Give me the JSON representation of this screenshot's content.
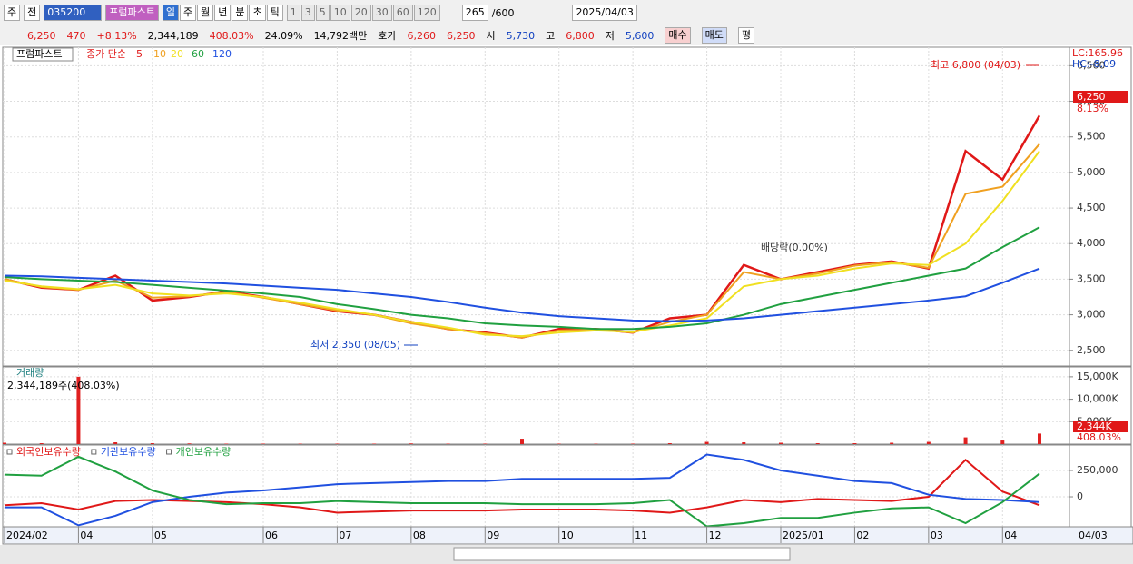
{
  "toolbar": {
    "period_type": "주",
    "scope": "전",
    "code": "035200",
    "name": "프럼파스트",
    "intervals": [
      "일",
      "주",
      "월",
      "년",
      "분",
      "초",
      "틱"
    ],
    "minutes": [
      "1",
      "3",
      "5",
      "10",
      "20",
      "30",
      "60",
      "120"
    ],
    "count": "265",
    "max": "/600",
    "date": "2025/04/03"
  },
  "quote": {
    "price": "6,250",
    "change": "470",
    "rate": "+8.13%",
    "volume": "2,344,189",
    "volume_rate": "408.03%",
    "turnover": "24.09%",
    "amount": "14,792백만",
    "bid_label": "호가",
    "ask": "6,260",
    "bid": "6,250",
    "open_label": "시",
    "open": "5,730",
    "high_label": "고",
    "high": "6,800",
    "low_label": "저",
    "low": "5,600",
    "buy": "매수",
    "sell": "매도",
    "avg": "평"
  },
  "chart_data": [
    {
      "type": "line",
      "name": "프럼파스트",
      "legend_prefix": "종가 단순",
      "series": [
        {
          "name": "5",
          "color": "#e01818",
          "values": [
            3500,
            3380,
            3350,
            3550,
            3200,
            3250,
            3330,
            3250,
            3150,
            3050,
            3000,
            2900,
            2800,
            2750,
            2680,
            2800,
            2800,
            2750,
            2950,
            3000,
            3700,
            3500,
            3600,
            3700,
            3750,
            3650,
            5300,
            4900,
            5800
          ]
        },
        {
          "name": "10",
          "color": "#f0a020",
          "values": [
            3500,
            3390,
            3350,
            3480,
            3240,
            3260,
            3320,
            3240,
            3150,
            3060,
            3000,
            2880,
            2800,
            2740,
            2680,
            2780,
            2790,
            2750,
            2900,
            3000,
            3600,
            3500,
            3580,
            3690,
            3740,
            3660,
            4700,
            4800,
            5400
          ]
        },
        {
          "name": "20",
          "color": "#f0e020",
          "values": [
            3480,
            3400,
            3360,
            3420,
            3300,
            3270,
            3300,
            3250,
            3170,
            3080,
            3000,
            2900,
            2820,
            2720,
            2700,
            2750,
            2780,
            2760,
            2850,
            2950,
            3400,
            3500,
            3550,
            3650,
            3720,
            3700,
            4000,
            4600,
            5300
          ]
        },
        {
          "name": "60",
          "color": "#20a040",
          "values": [
            3530,
            3500,
            3480,
            3460,
            3420,
            3380,
            3340,
            3300,
            3250,
            3150,
            3080,
            3000,
            2950,
            2880,
            2850,
            2830,
            2800,
            2800,
            2830,
            2880,
            3000,
            3150,
            3250,
            3350,
            3450,
            3550,
            3650,
            3950,
            4230
          ]
        },
        {
          "name": "120",
          "color": "#2050e0",
          "values": [
            3550,
            3540,
            3520,
            3500,
            3480,
            3460,
            3440,
            3410,
            3380,
            3350,
            3300,
            3250,
            3180,
            3100,
            3030,
            2980,
            2950,
            2920,
            2910,
            2920,
            2950,
            3000,
            3050,
            3100,
            3150,
            3200,
            3260,
            3450,
            3650
          ]
        }
      ],
      "ylim": [
        2280,
        6760
      ],
      "yticks": [
        {
          "value": 2500,
          "label": "2,500"
        },
        {
          "value": 3000,
          "label": "3,000"
        },
        {
          "value": 3500,
          "label": "3,500"
        },
        {
          "value": 4000,
          "label": "4,000"
        },
        {
          "value": 4500,
          "label": "4,500"
        },
        {
          "value": 5000,
          "label": "5,000"
        },
        {
          "value": 5500,
          "label": "5,500"
        },
        {
          "value": 6000,
          "label": "6,000"
        },
        {
          "value": 6500,
          "label": "6,500"
        }
      ],
      "annotations": {
        "high": "최고 6,800 (04/03)",
        "low": "최저 2,350 (08/05)",
        "event": "배당락(0.00%)",
        "lc": "LC:165.96",
        "hc": "HC:-8.09",
        "last": "6,250",
        "last_rate": "8.13%"
      }
    },
    {
      "type": "bar",
      "title": "거래량",
      "info": "2,344,189주(408.03%)",
      "color": "#e02020",
      "values": [
        300,
        200,
        15000,
        400,
        200,
        150,
        100,
        100,
        100,
        100,
        100,
        150,
        100,
        100,
        1200,
        100,
        80,
        100,
        200,
        500,
        400,
        300,
        200,
        200,
        300,
        500,
        1500,
        800,
        2344
      ],
      "ylim": [
        0,
        17200
      ],
      "yticks": [
        {
          "value": 5000,
          "label": "5,000K"
        },
        {
          "value": 10000,
          "label": "10,000K"
        },
        {
          "value": 15000,
          "label": "15,000K"
        }
      ],
      "last_label": "2,344K",
      "last_rate": "408.03%"
    },
    {
      "type": "line",
      "series": [
        {
          "name": "외국인보유수량",
          "color": "#e01818",
          "values": [
            -80000,
            -60000,
            -120000,
            -40000,
            -30000,
            -40000,
            -50000,
            -70000,
            -100000,
            -150000,
            -140000,
            -130000,
            -130000,
            -130000,
            -120000,
            -120000,
            -120000,
            -130000,
            -150000,
            -100000,
            -30000,
            -50000,
            -20000,
            -30000,
            -40000,
            0,
            350000,
            50000,
            -80000
          ]
        },
        {
          "name": "기관보유수량",
          "color": "#2050e0",
          "values": [
            -100000,
            -100000,
            -270000,
            -180000,
            -50000,
            0,
            40000,
            60000,
            90000,
            120000,
            130000,
            140000,
            150000,
            150000,
            170000,
            170000,
            170000,
            170000,
            180000,
            400000,
            350000,
            250000,
            200000,
            150000,
            130000,
            20000,
            -20000,
            -30000,
            -50000
          ]
        },
        {
          "name": "개인보유수량",
          "color": "#20a040",
          "values": [
            210000,
            200000,
            380000,
            240000,
            60000,
            -30000,
            -70000,
            -60000,
            -60000,
            -40000,
            -50000,
            -60000,
            -60000,
            -60000,
            -70000,
            -70000,
            -70000,
            -60000,
            -30000,
            -280000,
            -250000,
            -200000,
            -200000,
            -150000,
            -110000,
            -100000,
            -250000,
            -50000,
            220000
          ]
        }
      ],
      "ylim": [
        -284000,
        491000
      ],
      "yticks": [
        0,
        {
          "value": 250000,
          "label": "250,000"
        }
      ],
      "categories": [
        "2024/02",
        null,
        "04",
        null,
        "05",
        null,
        null,
        "06",
        null,
        "07",
        null,
        "08",
        null,
        "09",
        null,
        "10",
        null,
        "11",
        null,
        "12",
        null,
        "2025/01",
        null,
        "02",
        null,
        "03",
        null,
        "04",
        null
      ],
      "end_label": "04/03"
    }
  ]
}
